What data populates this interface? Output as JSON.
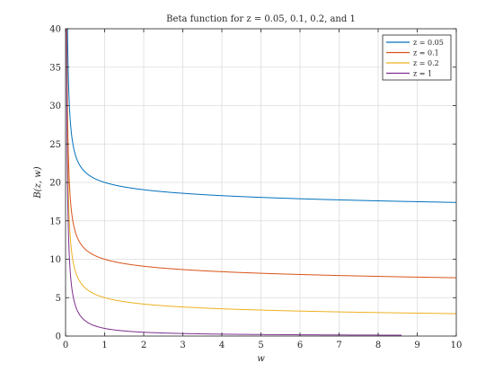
{
  "chart_data": {
    "type": "line",
    "title": "Beta function for z = 0.05, 0.1, 0.2, and 1",
    "xlabel": "w",
    "ylabel": "B(z, w)",
    "xlim": [
      0,
      10
    ],
    "ylim": [
      0,
      40
    ],
    "x_ticks": [
      0,
      1,
      2,
      3,
      4,
      5,
      6,
      7,
      8,
      9,
      10
    ],
    "y_ticks": [
      0,
      5,
      10,
      15,
      20,
      25,
      30,
      35,
      40
    ],
    "grid": true,
    "legend_position": "top-right",
    "series": [
      {
        "name": "z = 0.05",
        "color": "#0072BD",
        "z": 0.05,
        "x_end": 10
      },
      {
        "name": "z = 0.1",
        "color": "#D95319",
        "z": 0.1,
        "x_end": 10
      },
      {
        "name": "z = 0.2",
        "color": "#EDB120",
        "z": 0.2,
        "x_end": 10
      },
      {
        "name": "z = 1",
        "color": "#7E2F8E",
        "z": 1,
        "x_end": 8.6
      }
    ]
  }
}
